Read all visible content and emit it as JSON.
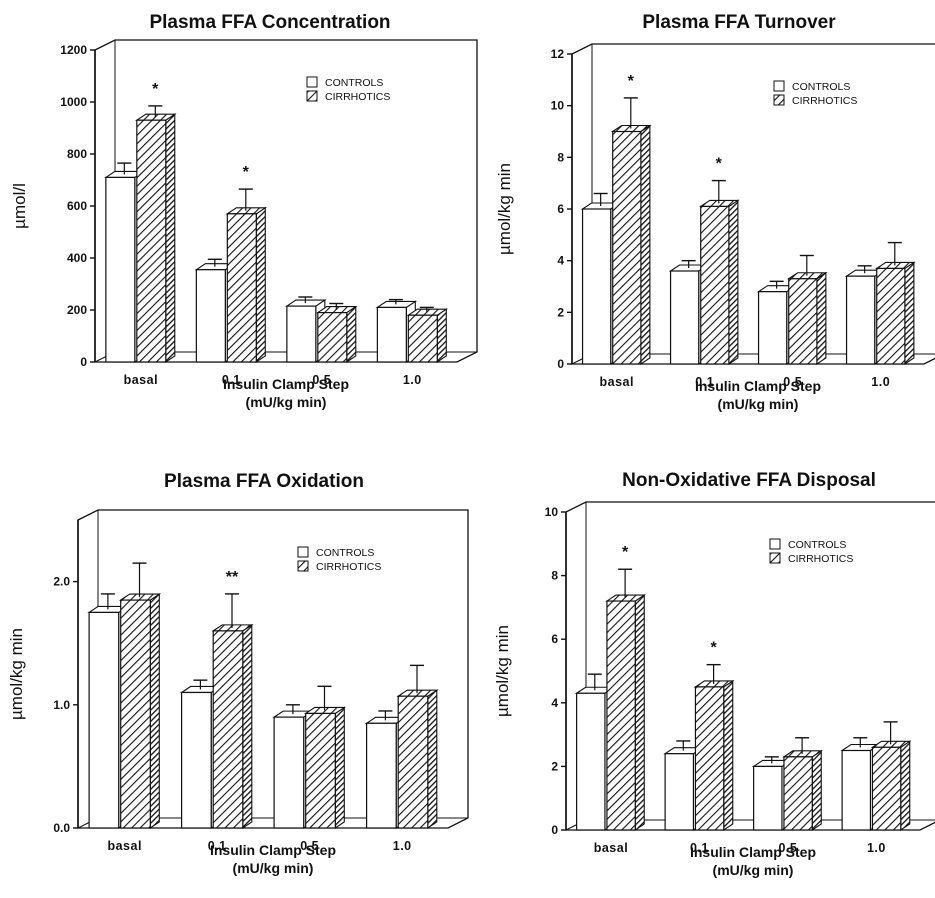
{
  "colors": {
    "ink": "#111111",
    "controls_fill": "#ffffff",
    "cirrhotics_fill": "hatched"
  },
  "chart_data": [
    {
      "type": "bar",
      "title": "Plasma FFA Concentration",
      "ylabel": "µmol/l",
      "xlabel": "Insulin Clamp Step",
      "xunit": "(mU/kg min)",
      "categories": [
        "basal",
        "0.1",
        "0.5",
        "1.0"
      ],
      "ylim": [
        0,
        1200
      ],
      "yticks": [
        "0",
        "200",
        "400",
        "600",
        "800",
        "1000",
        "1200"
      ],
      "legend_position": "top-right",
      "series": [
        {
          "name": "CONTROLS",
          "values": [
            710,
            355,
            215,
            210
          ],
          "errors": [
            55,
            40,
            35,
            30
          ]
        },
        {
          "name": "CIRRHOTICS",
          "values": [
            930,
            570,
            190,
            180
          ],
          "errors": [
            55,
            95,
            35,
            30
          ]
        }
      ],
      "annotations": [
        "*",
        "*",
        "",
        ""
      ]
    },
    {
      "type": "bar",
      "title": "Plasma FFA Turnover",
      "ylabel": "µmol/kg min",
      "xlabel": "Insulin Clamp Step",
      "xunit": "(mU/kg min)",
      "categories": [
        "basal",
        "0.1",
        "0.5",
        "1.0"
      ],
      "ylim": [
        0,
        12
      ],
      "yticks": [
        "0",
        "2",
        "4",
        "6",
        "8",
        "10",
        "12"
      ],
      "legend_position": "top-right",
      "series": [
        {
          "name": "CONTROLS",
          "values": [
            6.0,
            3.6,
            2.8,
            3.4
          ],
          "errors": [
            0.6,
            0.4,
            0.4,
            0.4
          ]
        },
        {
          "name": "CIRRHOTICS",
          "values": [
            9.0,
            6.1,
            3.3,
            3.7
          ],
          "errors": [
            1.3,
            1.0,
            0.9,
            1.0
          ]
        }
      ],
      "annotations": [
        "*",
        "*",
        "",
        ""
      ]
    },
    {
      "type": "bar",
      "title": "Plasma FFA Oxidation",
      "ylabel": "µmol/kg min",
      "xlabel": "Insulin Clamp Step",
      "xunit": "(mU/kg min)",
      "categories": [
        "basal",
        "0.1",
        "0.5",
        "1.0"
      ],
      "ylim": [
        0,
        2.5
      ],
      "yticks": [
        "0.0",
        "1.0",
        "2.0"
      ],
      "legend_position": "top-right",
      "series": [
        {
          "name": "CONTROLS",
          "values": [
            1.75,
            1.1,
            0.9,
            0.85
          ],
          "errors": [
            0.15,
            0.1,
            0.1,
            0.1
          ]
        },
        {
          "name": "CIRRHOTICS",
          "values": [
            1.85,
            1.6,
            0.93,
            1.07
          ],
          "errors": [
            0.3,
            0.3,
            0.22,
            0.25
          ]
        }
      ],
      "annotations": [
        "",
        "**",
        "",
        ""
      ]
    },
    {
      "type": "bar",
      "title": "Non-Oxidative FFA Disposal",
      "ylabel": "µmol/kg min",
      "xlabel": "Insulin Clamp Step",
      "xunit": "(mU/kg min)",
      "categories": [
        "basal",
        "0.1",
        "0.5",
        "1.0"
      ],
      "ylim": [
        0,
        10
      ],
      "yticks": [
        "0",
        "2",
        "4",
        "6",
        "8",
        "10"
      ],
      "legend_position": "top-right",
      "series": [
        {
          "name": "CONTROLS",
          "values": [
            4.3,
            2.4,
            2.0,
            2.5
          ],
          "errors": [
            0.6,
            0.4,
            0.3,
            0.4
          ]
        },
        {
          "name": "CIRRHOTICS",
          "values": [
            7.2,
            4.5,
            2.3,
            2.6
          ],
          "errors": [
            1.0,
            0.7,
            0.6,
            0.8
          ]
        }
      ],
      "annotations": [
        "*",
        "*",
        "",
        ""
      ]
    }
  ]
}
